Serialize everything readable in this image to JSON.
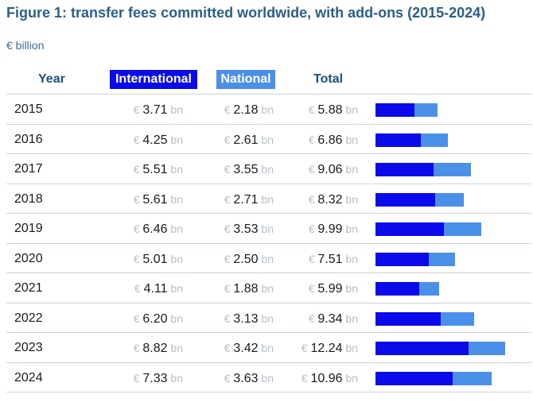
{
  "title": "Figure 1: transfer fees committed worldwide, with add-ons (2015-2024)",
  "subtitle": "€ billion",
  "headers": {
    "year": "Year",
    "international": "International",
    "national": "National",
    "total": "Total"
  },
  "currency_symbol": "€",
  "unit": "bn",
  "colors": {
    "international": "#0a0aeb",
    "national": "#4a90e8"
  },
  "chart_data": {
    "type": "bar",
    "stacked": true,
    "orientation": "horizontal",
    "title": "Figure 1: transfer fees committed worldwide, with add-ons (2015-2024)",
    "subtitle": "€ billion",
    "categories": [
      "2015",
      "2016",
      "2017",
      "2018",
      "2019",
      "2020",
      "2021",
      "2022",
      "2023",
      "2024"
    ],
    "series": [
      {
        "name": "International",
        "values": [
          3.71,
          4.25,
          5.51,
          5.61,
          6.46,
          5.01,
          4.11,
          6.2,
          8.82,
          7.33
        ]
      },
      {
        "name": "National",
        "values": [
          2.18,
          2.61,
          3.55,
          2.71,
          3.53,
          2.5,
          1.88,
          3.13,
          3.42,
          3.63
        ]
      }
    ],
    "totals": [
      5.88,
      6.86,
      9.06,
      8.32,
      9.99,
      7.51,
      5.99,
      9.34,
      12.24,
      10.96
    ],
    "labels": {
      "international": [
        "3.71",
        "4.25",
        "5.51",
        "5.61",
        "6.46",
        "5.01",
        "4.11",
        "6.20",
        "8.82",
        "7.33"
      ],
      "national": [
        "2.18",
        "2.61",
        "3.55",
        "2.71",
        "3.53",
        "2.50",
        "1.88",
        "3.13",
        "3.42",
        "3.63"
      ],
      "total": [
        "5.88",
        "6.86",
        "9.06",
        "8.32",
        "9.99",
        "7.51",
        "5.99",
        "9.34",
        "12.24",
        "10.96"
      ]
    }
  }
}
